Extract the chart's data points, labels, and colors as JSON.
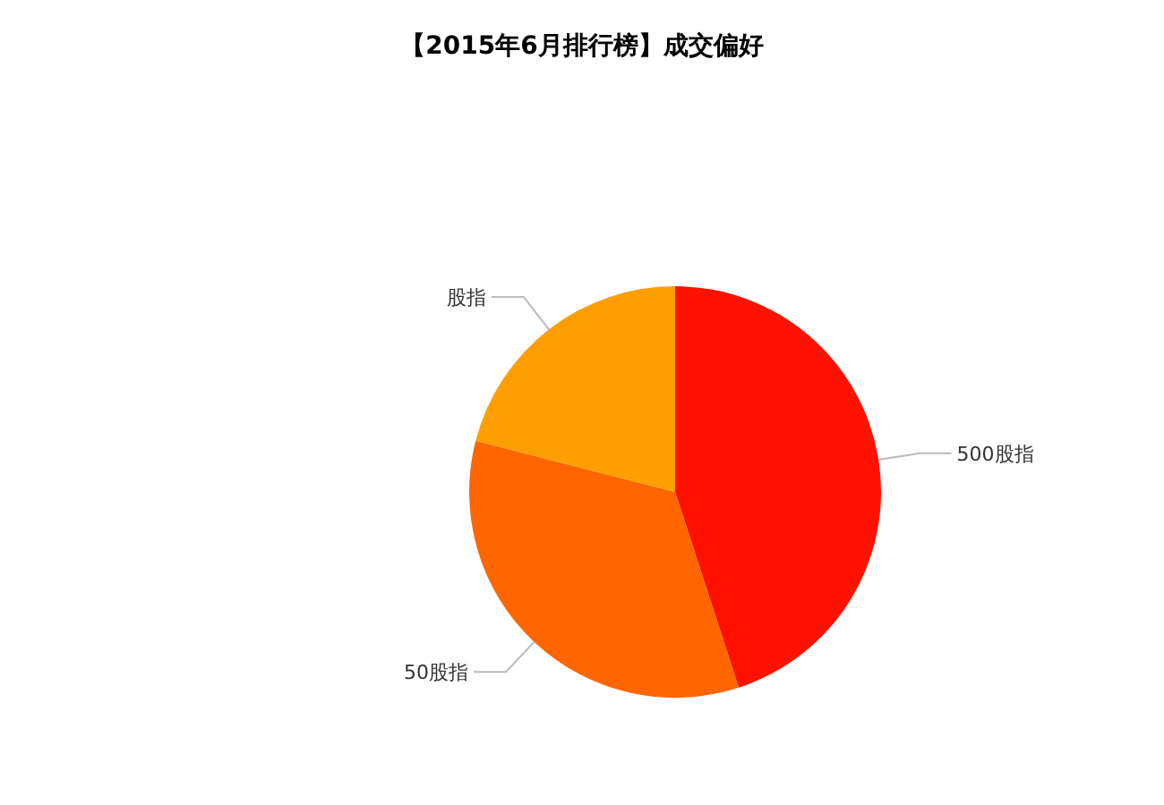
{
  "chart_data": {
    "type": "pie",
    "title": "【2015年6月排行榜】成交偏好",
    "categories": [
      "500股指",
      "50股指",
      "股指"
    ],
    "values": [
      45,
      34,
      21
    ],
    "colors": [
      "#ff1100",
      "#ff6600",
      "#ff9e01"
    ]
  }
}
